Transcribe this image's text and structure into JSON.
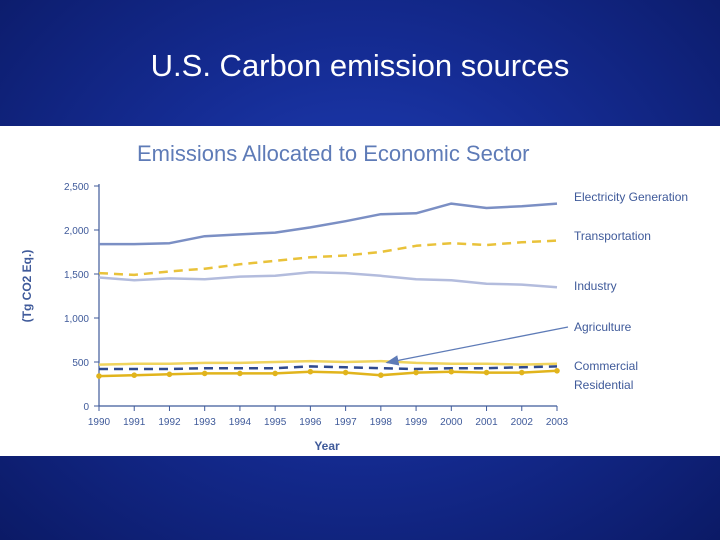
{
  "slide": {
    "title": "U.S. Carbon emission sources"
  },
  "colors": {
    "electricity": "#7b8fc4",
    "transportation": "#e9c23a",
    "industry": "#b3bcdd",
    "agriculture": "#2f4a8f",
    "commercial": "#f0d45e",
    "residential": "#e1b41c",
    "axis_text": "#3f5a9a",
    "chart_title": "#5e7bb7"
  },
  "chart_data": {
    "type": "line",
    "title": "Emissions Allocated to Economic Sector",
    "xlabel": "Year",
    "ylabel": "(Tg CO2 Eq.)",
    "x": [
      "1990",
      "1991",
      "1992",
      "1993",
      "1994",
      "1995",
      "1996",
      "1997",
      "1998",
      "1999",
      "2000",
      "2001",
      "2002",
      "2003"
    ],
    "ylim": [
      0,
      2500
    ],
    "yticks": [
      "0",
      "500",
      "1,000",
      "1,500",
      "2,000",
      "2,500"
    ],
    "series": [
      {
        "name": "Electricity Generation",
        "style": "solid",
        "values": [
          1840,
          1840,
          1850,
          1930,
          1950,
          1970,
          2030,
          2100,
          2180,
          2190,
          2300,
          2250,
          2270,
          2300
        ]
      },
      {
        "name": "Transportation",
        "style": "dashed",
        "values": [
          1510,
          1490,
          1530,
          1560,
          1610,
          1650,
          1690,
          1710,
          1750,
          1820,
          1850,
          1830,
          1860,
          1880
        ]
      },
      {
        "name": "Industry",
        "style": "solid",
        "values": [
          1460,
          1430,
          1450,
          1440,
          1470,
          1480,
          1520,
          1510,
          1480,
          1440,
          1430,
          1390,
          1380,
          1350
        ]
      },
      {
        "name": "Agriculture",
        "style": "dashed",
        "values": [
          420,
          420,
          420,
          430,
          430,
          430,
          450,
          440,
          430,
          420,
          430,
          430,
          440,
          450
        ]
      },
      {
        "name": "Commercial",
        "style": "solid",
        "values": [
          470,
          480,
          480,
          490,
          490,
          500,
          510,
          500,
          510,
          490,
          480,
          480,
          470,
          480
        ]
      },
      {
        "name": "Residential",
        "style": "markers",
        "values": [
          340,
          350,
          360,
          370,
          370,
          370,
          390,
          380,
          350,
          380,
          390,
          380,
          380,
          400
        ]
      }
    ],
    "annotation": {
      "type": "arrow",
      "from_label": "Agriculture",
      "points_to_year": "1998",
      "points_to_value": 470
    }
  }
}
